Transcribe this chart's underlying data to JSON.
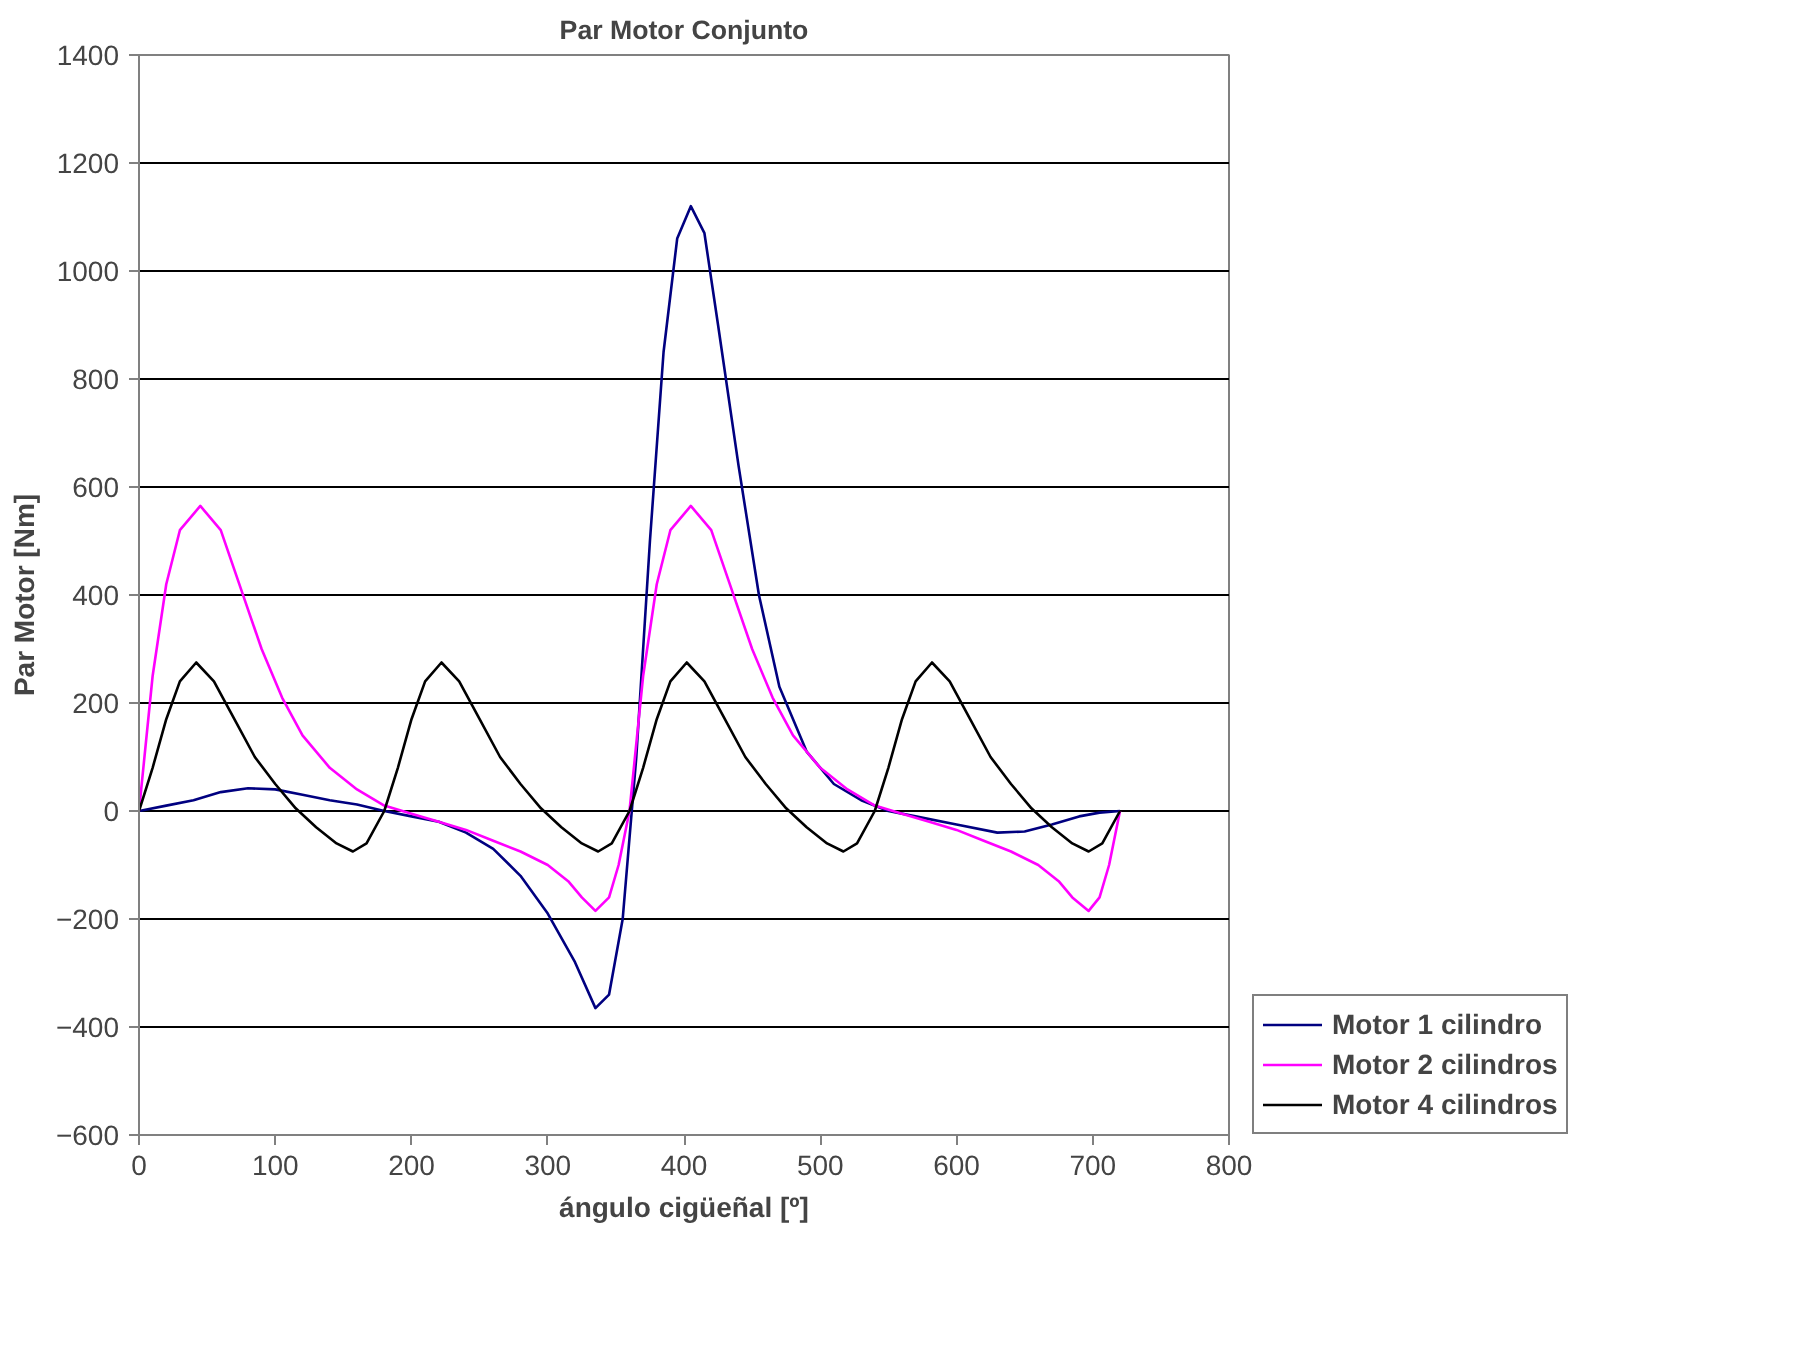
{
  "chart_data": {
    "type": "line",
    "title": "Par Motor Conjunto",
    "xlabel": "ángulo cigüeñal [º]",
    "ylabel": "Par Motor [Nm]",
    "xlim": [
      0,
      800
    ],
    "xticks": [
      0,
      100,
      200,
      300,
      400,
      500,
      600,
      700,
      800
    ],
    "ylim": [
      -600,
      1400
    ],
    "yticks": [
      -600,
      -400,
      -200,
      0,
      200,
      400,
      600,
      800,
      1000,
      1200,
      1400
    ],
    "grid": "y",
    "legend": "right",
    "marker": "none",
    "line_style": "solid",
    "series": [
      {
        "name": "Motor 1 cilindro",
        "color": "#000080",
        "x": [
          0,
          20,
          40,
          60,
          80,
          100,
          120,
          140,
          160,
          180,
          200,
          220,
          240,
          260,
          280,
          300,
          320,
          335,
          345,
          355,
          365,
          375,
          385,
          395,
          405,
          415,
          425,
          440,
          455,
          470,
          490,
          510,
          530,
          550,
          570,
          600,
          630,
          650,
          670,
          690,
          705,
          720
        ],
        "values": [
          0,
          10,
          20,
          35,
          42,
          40,
          30,
          20,
          12,
          0,
          -10,
          -20,
          -40,
          -70,
          -120,
          -190,
          -280,
          -365,
          -340,
          -200,
          100,
          500,
          850,
          1060,
          1120,
          1070,
          900,
          640,
          400,
          230,
          110,
          50,
          20,
          0,
          -10,
          -25,
          -40,
          -38,
          -25,
          -10,
          -3,
          0
        ]
      },
      {
        "name": "Motor 2 cilindros",
        "color": "#ff00ff",
        "x": [
          0,
          10,
          20,
          30,
          45,
          60,
          75,
          90,
          105,
          120,
          140,
          160,
          180,
          200,
          220,
          240,
          260,
          280,
          300,
          315,
          325,
          335,
          345,
          352,
          360,
          370,
          380,
          390,
          405,
          420,
          435,
          450,
          465,
          480,
          500,
          520,
          540,
          560,
          580,
          600,
          620,
          640,
          660,
          675,
          685,
          697,
          705,
          712,
          720
        ],
        "values": [
          0,
          250,
          420,
          520,
          565,
          520,
          410,
          300,
          210,
          140,
          80,
          40,
          10,
          -5,
          -20,
          -35,
          -55,
          -75,
          -100,
          -130,
          -160,
          -185,
          -160,
          -100,
          0,
          250,
          420,
          520,
          565,
          520,
          410,
          300,
          210,
          140,
          80,
          40,
          10,
          -5,
          -20,
          -35,
          -55,
          -75,
          -100,
          -130,
          -160,
          -185,
          -160,
          -100,
          0
        ]
      },
      {
        "name": "Motor 4 cilindros",
        "color": "#000000",
        "x": [
          0,
          10,
          20,
          30,
          42,
          55,
          70,
          85,
          100,
          115,
          130,
          145,
          157,
          167,
          180,
          190,
          200,
          210,
          222,
          235,
          250,
          265,
          280,
          295,
          310,
          325,
          337,
          347,
          360,
          370,
          380,
          390,
          402,
          415,
          430,
          445,
          460,
          475,
          490,
          505,
          517,
          527,
          540,
          550,
          560,
          570,
          582,
          595,
          610,
          625,
          640,
          655,
          670,
          685,
          697,
          707,
          720
        ],
        "values": [
          0,
          80,
          170,
          240,
          275,
          240,
          170,
          100,
          50,
          5,
          -30,
          -60,
          -75,
          -60,
          0,
          80,
          170,
          240,
          275,
          240,
          170,
          100,
          50,
          5,
          -30,
          -60,
          -75,
          -60,
          0,
          80,
          170,
          240,
          275,
          240,
          170,
          100,
          50,
          5,
          -30,
          -60,
          -75,
          -60,
          0,
          80,
          170,
          240,
          275,
          240,
          170,
          100,
          50,
          5,
          -30,
          -60,
          -75,
          -60,
          0
        ]
      }
    ]
  }
}
